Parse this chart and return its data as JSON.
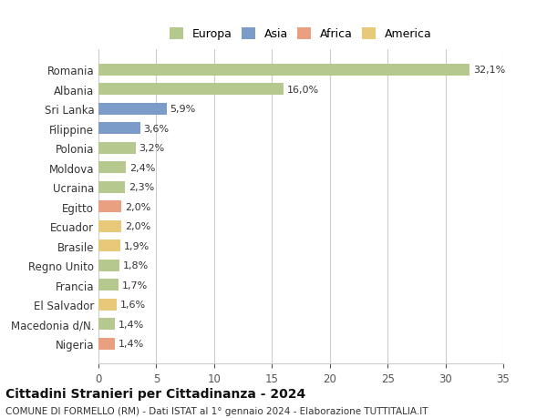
{
  "categories": [
    "Nigeria",
    "Macedonia d/N.",
    "El Salvador",
    "Francia",
    "Regno Unito",
    "Brasile",
    "Ecuador",
    "Egitto",
    "Ucraina",
    "Moldova",
    "Polonia",
    "Filippine",
    "Sri Lanka",
    "Albania",
    "Romania"
  ],
  "values": [
    1.4,
    1.4,
    1.6,
    1.7,
    1.8,
    1.9,
    2.0,
    2.0,
    2.3,
    2.4,
    3.2,
    3.6,
    5.9,
    16.0,
    32.1
  ],
  "labels": [
    "1,4%",
    "1,4%",
    "1,6%",
    "1,7%",
    "1,8%",
    "1,9%",
    "2,0%",
    "2,0%",
    "2,3%",
    "2,4%",
    "3,2%",
    "3,6%",
    "5,9%",
    "16,0%",
    "32,1%"
  ],
  "continents": [
    "Africa",
    "Europa",
    "America",
    "Europa",
    "Europa",
    "America",
    "America",
    "Africa",
    "Europa",
    "Europa",
    "Europa",
    "Asia",
    "Asia",
    "Europa",
    "Europa"
  ],
  "colors": {
    "Europa": "#b5c98e",
    "Asia": "#7b9bc8",
    "Africa": "#e8a080",
    "America": "#e8c97a"
  },
  "legend_order": [
    "Europa",
    "Asia",
    "Africa",
    "America"
  ],
  "xlim": [
    0,
    35
  ],
  "xticks": [
    0,
    5,
    10,
    15,
    20,
    25,
    30,
    35
  ],
  "title1": "Cittadini Stranieri per Cittadinanza - 2024",
  "title2": "COMUNE DI FORMELLO (RM) - Dati ISTAT al 1° gennaio 2024 - Elaborazione TUTTITALIA.IT",
  "bg_color": "#ffffff",
  "grid_color": "#cccccc",
  "bar_height": 0.6
}
